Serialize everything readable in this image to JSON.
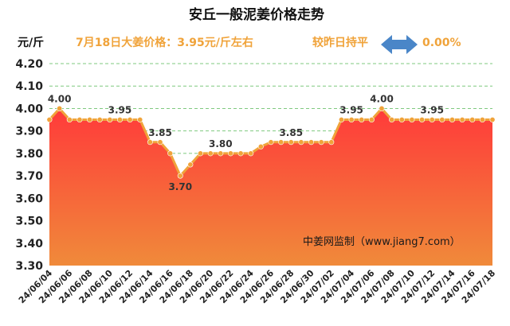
{
  "header": {
    "price_text": "7月18日大姜价格：3.95元/斤左右",
    "compare_text": "较昨日持平",
    "change_text": "0.00%",
    "arrow_icon": "double-arrow-icon",
    "arrow_color": "#4a86c8"
  },
  "watermark": "中姜网监制（www.jiang7.com）",
  "chart_data": {
    "type": "area",
    "title": "安丘一般泥姜价格走势",
    "ylabel": "元/斤",
    "xlabel": "",
    "ylim": [
      3.3,
      4.2
    ],
    "yticks": [
      3.3,
      3.4,
      3.5,
      3.6,
      3.7,
      3.8,
      3.9,
      4.0,
      4.1,
      4.2
    ],
    "grid": true,
    "x": [
      "24/06/04",
      "24/06/05",
      "24/06/06",
      "24/06/07",
      "24/06/08",
      "24/06/09",
      "24/06/10",
      "24/06/11",
      "24/06/12",
      "24/06/13",
      "24/06/14",
      "24/06/15",
      "24/06/16",
      "24/06/17",
      "24/06/18",
      "24/06/19",
      "24/06/20",
      "24/06/21",
      "24/06/22",
      "24/06/23",
      "24/06/24",
      "24/06/25",
      "24/06/26",
      "24/06/27",
      "24/06/28",
      "24/06/29",
      "24/06/30",
      "24/07/01",
      "24/07/02",
      "24/07/03",
      "24/07/04",
      "24/07/05",
      "24/07/06",
      "24/07/07",
      "24/07/08",
      "24/07/09",
      "24/07/10",
      "24/07/11",
      "24/07/12",
      "24/07/13",
      "24/07/14",
      "24/07/15",
      "24/07/16",
      "24/07/17",
      "24/07/18"
    ],
    "x_tick_labels": [
      "24/06/04",
      "24/06/06",
      "24/06/08",
      "24/06/10",
      "24/06/12",
      "24/06/14",
      "24/06/16",
      "24/06/18",
      "24/06/20",
      "24/06/22",
      "24/06/24",
      "24/06/26",
      "24/06/28",
      "24/06/30",
      "24/07/02",
      "24/07/04",
      "24/07/06",
      "24/07/08",
      "24/07/10",
      "24/07/12",
      "24/07/14",
      "24/07/16",
      "24/07/18"
    ],
    "values": [
      3.95,
      4.0,
      3.95,
      3.95,
      3.95,
      3.95,
      3.95,
      3.95,
      3.95,
      3.95,
      3.85,
      3.85,
      3.8,
      3.7,
      3.75,
      3.8,
      3.8,
      3.8,
      3.8,
      3.8,
      3.8,
      3.83,
      3.85,
      3.85,
      3.85,
      3.85,
      3.85,
      3.85,
      3.85,
      3.95,
      3.95,
      3.95,
      3.95,
      4.0,
      3.95,
      3.95,
      3.95,
      3.95,
      3.95,
      3.95,
      3.95,
      3.95,
      3.95,
      3.95,
      3.95
    ],
    "data_labels": [
      {
        "x": "24/06/05",
        "text": "4.00"
      },
      {
        "x": "24/06/11",
        "text": "3.95"
      },
      {
        "x": "24/06/15",
        "text": "3.85"
      },
      {
        "x": "24/06/17",
        "text": "3.70"
      },
      {
        "x": "24/06/21",
        "text": "3.80"
      },
      {
        "x": "24/06/28",
        "text": "3.85"
      },
      {
        "x": "24/07/04",
        "text": "3.95"
      },
      {
        "x": "24/07/07",
        "text": "4.00"
      },
      {
        "x": "24/07/12",
        "text": "3.95"
      }
    ],
    "colors": {
      "line": "#f0a33a",
      "fill_top": "#ff3a3a",
      "fill_bottom": "#f08a3a",
      "grid": "#7fc97f"
    }
  }
}
